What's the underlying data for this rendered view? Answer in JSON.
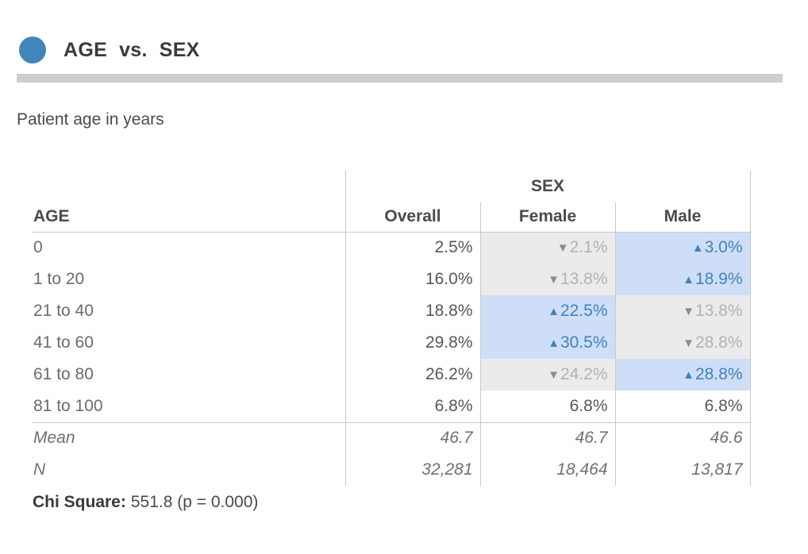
{
  "header": {
    "bullet_color": "#4285bb",
    "title_var1": "AGE",
    "title_connector": "vs.",
    "title_var2": "SEX",
    "subtitle": "Patient age in years"
  },
  "table": {
    "group_header": "SEX",
    "row_dim": "AGE",
    "col_headers": {
      "overall": "Overall",
      "female": "Female",
      "male": "Male"
    },
    "rows": [
      {
        "label": "0",
        "overall": {
          "value": "2.5%",
          "dir": "plain"
        },
        "female": {
          "value": "2.1%",
          "dir": "down"
        },
        "male": {
          "value": "3.0%",
          "dir": "up"
        }
      },
      {
        "label": "1 to 20",
        "overall": {
          "value": "16.0%",
          "dir": "plain"
        },
        "female": {
          "value": "13.8%",
          "dir": "down"
        },
        "male": {
          "value": "18.9%",
          "dir": "up"
        }
      },
      {
        "label": "21 to 40",
        "overall": {
          "value": "18.8%",
          "dir": "plain"
        },
        "female": {
          "value": "22.5%",
          "dir": "up"
        },
        "male": {
          "value": "13.8%",
          "dir": "down"
        }
      },
      {
        "label": "41 to 60",
        "overall": {
          "value": "29.8%",
          "dir": "plain"
        },
        "female": {
          "value": "30.5%",
          "dir": "up"
        },
        "male": {
          "value": "28.8%",
          "dir": "down"
        }
      },
      {
        "label": "61 to 80",
        "overall": {
          "value": "26.2%",
          "dir": "plain"
        },
        "female": {
          "value": "24.2%",
          "dir": "down"
        },
        "male": {
          "value": "28.8%",
          "dir": "up"
        }
      },
      {
        "label": "81 to 100",
        "overall": {
          "value": "6.8%",
          "dir": "plain"
        },
        "female": {
          "value": "6.8%",
          "dir": "plain"
        },
        "male": {
          "value": "6.8%",
          "dir": "plain"
        }
      }
    ],
    "summary_rows": [
      {
        "label": "Mean",
        "overall": "46.7",
        "female": "46.7",
        "male": "46.6"
      },
      {
        "label": "N",
        "overall": "32,281",
        "female": "18,464",
        "male": "13,817"
      }
    ],
    "stat_label": "Chi Square:",
    "stat_value": "551.8 (p = 0.000)"
  },
  "icons": {
    "up_arrow": "▲",
    "down_arrow": "▼"
  },
  "colors": {
    "accent_blue": "#4285bb",
    "highlight_blue_bg": "#cfdef7",
    "highlight_blue_text": "#3f82bf",
    "highlight_gray_bg": "#ebebeb",
    "highlight_gray_text": "#b2b2b2",
    "arrow_gray": "#8d8d8d",
    "table_border": "#c9c9c9",
    "divider_bar": "#cecece"
  },
  "chart_data": {
    "type": "table",
    "title": "AGE vs. SEX",
    "subtitle": "Patient age in years",
    "row_dimension": "AGE",
    "column_dimension": "SEX",
    "categories": [
      "0",
      "1 to 20",
      "21 to 40",
      "41 to 60",
      "61 to 80",
      "81 to 100"
    ],
    "series": [
      {
        "name": "Overall",
        "values": [
          2.5,
          16.0,
          18.8,
          29.8,
          26.2,
          6.8
        ],
        "unit": "%"
      },
      {
        "name": "Female",
        "values": [
          2.1,
          13.8,
          22.5,
          30.5,
          24.2,
          6.8
        ],
        "unit": "%",
        "direction_vs_overall": [
          "down",
          "down",
          "up",
          "up",
          "down",
          "none"
        ]
      },
      {
        "name": "Male",
        "values": [
          3.0,
          18.9,
          13.8,
          28.8,
          28.8,
          6.8
        ],
        "unit": "%",
        "direction_vs_overall": [
          "up",
          "up",
          "down",
          "down",
          "up",
          "none"
        ]
      }
    ],
    "mean": {
      "Overall": 46.7,
      "Female": 46.7,
      "Male": 46.6
    },
    "n": {
      "Overall": 32281,
      "Female": 18464,
      "Male": 13817
    },
    "chi_square": 551.8,
    "p_value": "0.000"
  }
}
